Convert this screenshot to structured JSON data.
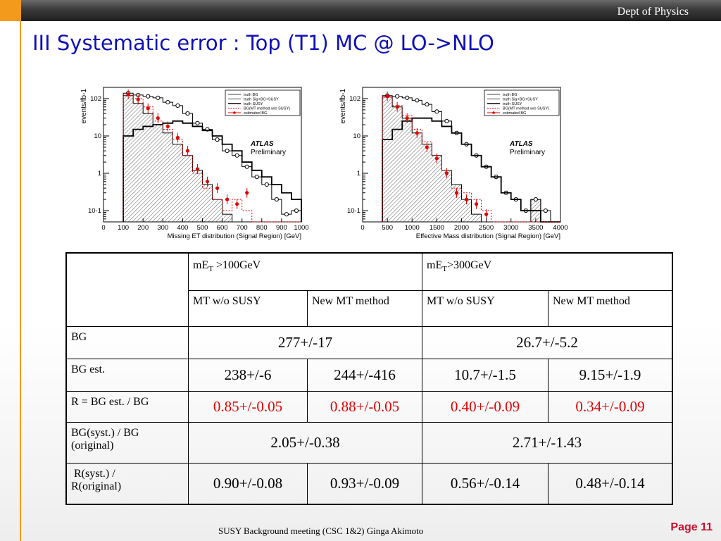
{
  "header": {
    "dept": "Dept of Physics"
  },
  "title": "III Systematic error : Top (T1) MC @ LO->NLO",
  "colors": {
    "title": "#1010b8",
    "accent": "#f39a1d",
    "highlight": "#e00000",
    "page": "#c8102e"
  },
  "chart_data": [
    {
      "type": "histogram",
      "xlabel": "Missing  ET distribution (Signal Region) [GeV]",
      "ylabel": "events/fb-1",
      "y_scale": "log",
      "xlim": [
        0,
        1000
      ],
      "ylim": [
        0.05,
        200
      ],
      "x_ticks": [
        "0",
        "100",
        "200",
        "300",
        "400",
        "500",
        "600",
        "700",
        "800",
        "900",
        "1000"
      ],
      "y_ticks": [
        "10-1",
        "1",
        "10",
        "102"
      ],
      "legend": [
        "truth BG",
        "truth Sig+BG+SUSY",
        "truth SUSY",
        "BG(MT method w/o SUSY)",
        "estimated BG"
      ],
      "legend_position": "top-right",
      "annotation": [
        "ATLAS",
        "Preliminary"
      ],
      "bin_edges": [
        100,
        150,
        200,
        250,
        300,
        350,
        400,
        450,
        500,
        550,
        600,
        650,
        700,
        750,
        800,
        850,
        900,
        950,
        1000
      ],
      "series": [
        {
          "name": "truth BG",
          "style": "hatched",
          "values": [
            120,
            75,
            40,
            20,
            12,
            6,
            3,
            1.2,
            0.5,
            0.2,
            0.08,
            0.05,
            0.05,
            0.05,
            0.05,
            0.05,
            0.05,
            0.05
          ]
        },
        {
          "name": "truth Sig+BG+SUSY",
          "style": "open",
          "values": [
            140,
            125,
            115,
            105,
            80,
            65,
            40,
            22,
            15,
            8,
            4,
            3,
            1.5,
            0.8,
            0.5,
            0.2,
            0.08,
            0.1
          ]
        },
        {
          "name": "truth SUSY",
          "style": "thick-line",
          "values": [
            10,
            15,
            18,
            20,
            22,
            25,
            22,
            18,
            14,
            10,
            6,
            4,
            2,
            1.2,
            0.8,
            0.5,
            0.3,
            0.2
          ]
        },
        {
          "name": "BG(MT method w/o SUSY)",
          "style": "dashed-red",
          "values": [
            120,
            100,
            60,
            25,
            15,
            8,
            3,
            1,
            0.4,
            0.2,
            0.1,
            0.2,
            0.1,
            0.05,
            0.05,
            0.05,
            0.05,
            0.05
          ]
        },
        {
          "name": "estimated BG",
          "style": "red-points",
          "values": [
            130,
            95,
            55,
            30,
            18,
            9,
            4,
            1.3,
            0.6,
            0.4,
            0.2,
            0.15,
            0.3,
            0.05,
            0.05,
            0.05,
            0.05,
            0.05
          ]
        }
      ]
    },
    {
      "type": "histogram",
      "xlabel": "Effective  Mass  distribution (Signal Region) [GeV]",
      "ylabel": "events/fb-1",
      "y_scale": "log",
      "xlim": [
        0,
        4000
      ],
      "ylim": [
        0.05,
        200
      ],
      "x_ticks": [
        "0",
        "500",
        "1000",
        "1500",
        "2000",
        "2500",
        "3000",
        "3500",
        "4000"
      ],
      "y_ticks": [
        "10-1",
        "1",
        "10",
        "102"
      ],
      "legend": [
        "truth BG",
        "truth Sig+BG+SUSY",
        "truth SUSY",
        "BG(MT method w/o SUSY)",
        "estimated BG"
      ],
      "legend_position": "top-right",
      "annotation": [
        "ATLAS",
        "Preliminary"
      ],
      "bin_edges": [
        400,
        600,
        800,
        1000,
        1200,
        1400,
        1600,
        1800,
        2000,
        2200,
        2400,
        2600,
        2800,
        3000,
        3200,
        3400,
        3600,
        3800,
        4000
      ],
      "series": [
        {
          "name": "truth BG",
          "style": "hatched",
          "values": [
            110,
            60,
            30,
            12,
            6,
            3,
            1.2,
            0.5,
            0.2,
            0.08,
            0.05,
            0.05,
            0.05,
            0.05,
            0.05,
            0.2,
            0.05,
            0.05
          ]
        },
        {
          "name": "truth Sig+BG+SUSY",
          "style": "open",
          "values": [
            120,
            115,
            105,
            90,
            70,
            45,
            25,
            12,
            6,
            3,
            1.5,
            0.8,
            0.3,
            0.2,
            0.1,
            0.2,
            0.1,
            0.05
          ]
        },
        {
          "name": "truth SUSY",
          "style": "thick-line",
          "values": [
            8,
            15,
            25,
            30,
            30,
            25,
            18,
            12,
            6,
            3,
            1.5,
            0.8,
            0.3,
            0.2,
            0.1,
            0.1,
            0.05,
            0.05
          ]
        },
        {
          "name": "BG(MT method w/o SUSY)",
          "style": "dashed-red",
          "values": [
            110,
            65,
            35,
            15,
            7,
            3,
            1.2,
            0.4,
            0.3,
            0.2,
            0.1,
            0.05,
            0.05,
            0.05,
            0.05,
            0.05,
            0.05,
            0.05
          ]
        },
        {
          "name": "estimated BG",
          "style": "red-points",
          "values": [
            115,
            60,
            30,
            12,
            5,
            2.5,
            1,
            0.3,
            0.2,
            0.15,
            0.08,
            0.05,
            0.05,
            0.05,
            0.05,
            0.05,
            0.05,
            0.05
          ]
        }
      ]
    }
  ],
  "table": {
    "headers": {
      "col_met_label": "mE",
      "col_met_sub": "T",
      "col_met_rest": " >100GeV",
      "col_meff_label": "mE",
      "col_meff_sub": "T",
      "col_meff_rest": ">300GeV",
      "sub": [
        "MT w/o SUSY",
        "New MT method",
        "MT w/o SUSY",
        "New MT method"
      ]
    },
    "rows": {
      "bg": {
        "label": "BG",
        "v1": "277+/-17",
        "v2": "26.7+/-5.2"
      },
      "bgest": {
        "label": "BG est.",
        "values": [
          "238+/-6",
          "244+/-416",
          "10.7+/-1.5",
          "9.15+/-1.9"
        ]
      },
      "r": {
        "label": "R = BG est. / BG",
        "values": [
          "0.85+/-0.05",
          "0.88+/-0.05",
          "0.40+/-0.09",
          "0.34+/-0.09"
        ]
      },
      "syst": {
        "label_line1": "BG(syst.) / BG",
        "label_line2": "(original)",
        "v1": "2.05+/-0.38",
        "v2": "2.71+/-1.43"
      },
      "rsyst": {
        "label_line1": " R(syst.) /",
        "label_line2": "R(original)",
        "values": [
          "0.90+/-0.08",
          "0.93+/-0.09",
          "0.56+/-0.14",
          "0.48+/-0.14"
        ]
      }
    }
  },
  "footer": "SUSY Background meeting  (CSC 1&2) Ginga Akimoto",
  "page_label": "Page 11"
}
